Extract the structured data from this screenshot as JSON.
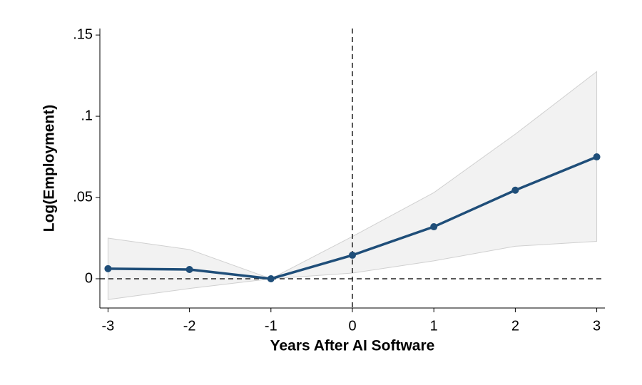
{
  "chart_data": {
    "type": "line",
    "x_label": "Years After AI Software",
    "y_label": "Log(Employment)",
    "x": [
      -3,
      -2,
      -1,
      0,
      1,
      2,
      3
    ],
    "values": [
      0.0062,
      0.0057,
      0,
      0.0145,
      0.032,
      0.0545,
      0.075
    ],
    "ci_upper": [
      0.025,
      0.018,
      0,
      0.026,
      0.053,
      0.089,
      0.1275
    ],
    "ci_lower": [
      -0.0128,
      -0.006,
      0,
      0.0035,
      0.011,
      0.02,
      0.023
    ],
    "color": "#1f4e79",
    "band_color": "#f2f2f2",
    "band_edge_color": "#d0d0d0",
    "xlim": [
      -3.1,
      3.1
    ],
    "ylim": [
      -0.018,
      0.154
    ],
    "xticks": [
      -3,
      -2,
      -1,
      0,
      1,
      2,
      3
    ],
    "yticks": [
      0,
      {
        "value": 0.05,
        "label": ".05"
      },
      {
        "value": 0.1,
        "label": ".1"
      },
      {
        "value": 0.15,
        "label": ".15"
      }
    ],
    "vline": 0,
    "hline": 0
  }
}
